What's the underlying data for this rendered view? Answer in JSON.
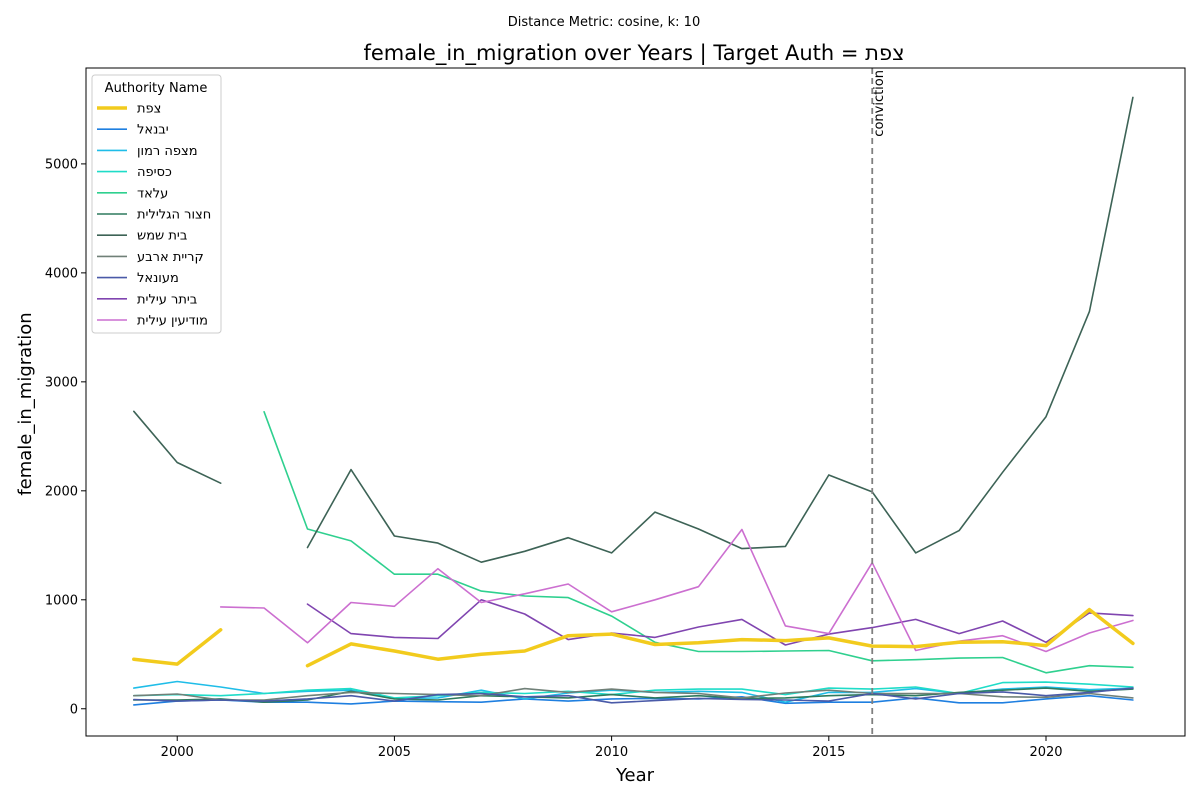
{
  "chart_data": {
    "type": "line",
    "suptitle": "Distance Metric: cosine, k: 10",
    "title": "female_in_migration over Years | Target Auth = צפת",
    "xlabel": "Year",
    "ylabel": "female_in_migration",
    "xlim": [
      1997.9,
      2023.2
    ],
    "ylim": [
      -250,
      5880
    ],
    "xticks": [
      2000,
      2005,
      2010,
      2015,
      2020
    ],
    "yticks": [
      0,
      1000,
      2000,
      3000,
      4000,
      5000
    ],
    "grid": false,
    "legend": {
      "title": "Authority Name",
      "placement": "top-left"
    },
    "vline": {
      "x": 2016,
      "label": "conviction",
      "color": "#808080"
    },
    "x": [
      1999,
      2000,
      2001,
      2002,
      2003,
      2004,
      2005,
      2006,
      2007,
      2008,
      2009,
      2010,
      2011,
      2012,
      2013,
      2014,
      2015,
      2016,
      2017,
      2018,
      2019,
      2020,
      2021,
      2022
    ],
    "series": [
      {
        "name": "צפת",
        "color": "#f2cb1d",
        "width": 3.5,
        "values": [
          455,
          410,
          725,
          null,
          395,
          595,
          530,
          455,
          500,
          530,
          670,
          685,
          590,
          605,
          635,
          625,
          650,
          575,
          570,
          610,
          615,
          580,
          910,
          600
        ]
      },
      {
        "name": "יבנאל",
        "color": "#1f7fe0",
        "width": 1.6,
        "values": [
          35,
          70,
          80,
          60,
          60,
          45,
          70,
          65,
          60,
          90,
          70,
          90,
          95,
          90,
          110,
          50,
          60,
          60,
          100,
          55,
          55,
          90,
          120,
          80
        ]
      },
      {
        "name": "מצפה רמון",
        "color": "#1fbde8",
        "width": 1.6,
        "values": [
          190,
          250,
          200,
          140,
          160,
          170,
          95,
          100,
          170,
          90,
          145,
          170,
          150,
          160,
          150,
          60,
          150,
          150,
          185,
          140,
          180,
          200,
          175,
          190
        ]
      },
      {
        "name": "כסיפה",
        "color": "#1fdcc8",
        "width": 1.6,
        "values": [
          120,
          130,
          120,
          140,
          170,
          185,
          100,
          120,
          150,
          140,
          160,
          130,
          170,
          180,
          180,
          130,
          190,
          180,
          200,
          140,
          240,
          245,
          225,
          200
        ]
      },
      {
        "name": "עלאד",
        "color": "#2fd08f",
        "width": 1.6,
        "values": [
          null,
          null,
          null,
          2725,
          1650,
          1540,
          1235,
          1235,
          1080,
          1035,
          1020,
          850,
          610,
          525,
          525,
          530,
          535,
          440,
          450,
          465,
          470,
          330,
          395,
          380
        ]
      },
      {
        "name": "חצור הגלילית",
        "color": "#2f7a5e",
        "width": 1.6,
        "values": [
          80,
          80,
          90,
          60,
          80,
          160,
          90,
          80,
          120,
          110,
          100,
          130,
          100,
          120,
          95,
          100,
          120,
          130,
          120,
          150,
          170,
          190,
          160,
          180
        ]
      },
      {
        "name": "בית שמש",
        "color": "#3d6356",
        "width": 1.6,
        "values": [
          2730,
          2260,
          2070,
          null,
          1480,
          2195,
          1585,
          1520,
          1345,
          1445,
          1570,
          1430,
          1805,
          1650,
          1470,
          1490,
          2145,
          1990,
          1430,
          1635,
          2170,
          2680,
          3645,
          5610
        ]
      },
      {
        "name": "קריית ארבע",
        "color": "#708078",
        "width": 1.6,
        "values": [
          120,
          135,
          80,
          80,
          120,
          150,
          140,
          130,
          120,
          185,
          150,
          180,
          150,
          140,
          100,
          145,
          170,
          140,
          140,
          140,
          110,
          105,
          140,
          100
        ]
      },
      {
        "name": "מעונאל",
        "color": "#4a5aa8",
        "width": 1.6,
        "values": [
          85,
          70,
          80,
          70,
          90,
          120,
          70,
          130,
          140,
          110,
          120,
          55,
          75,
          95,
          85,
          80,
          70,
          140,
          90,
          140,
          155,
          120,
          150,
          190
        ]
      },
      {
        "name": "ביתר עילית",
        "color": "#8045b0",
        "width": 1.6,
        "values": [
          null,
          null,
          null,
          null,
          960,
          690,
          655,
          645,
          1000,
          870,
          635,
          695,
          655,
          750,
          820,
          585,
          685,
          745,
          820,
          690,
          805,
          610,
          880,
          855
        ]
      },
      {
        "name": "מודיעין עילית",
        "color": "#cc6fd0",
        "width": 1.6,
        "values": [
          null,
          null,
          935,
          925,
          605,
          975,
          940,
          1285,
          975,
          1055,
          1145,
          890,
          1000,
          1120,
          1645,
          760,
          690,
          1340,
          535,
          620,
          670,
          525,
          695,
          810
        ]
      }
    ]
  }
}
